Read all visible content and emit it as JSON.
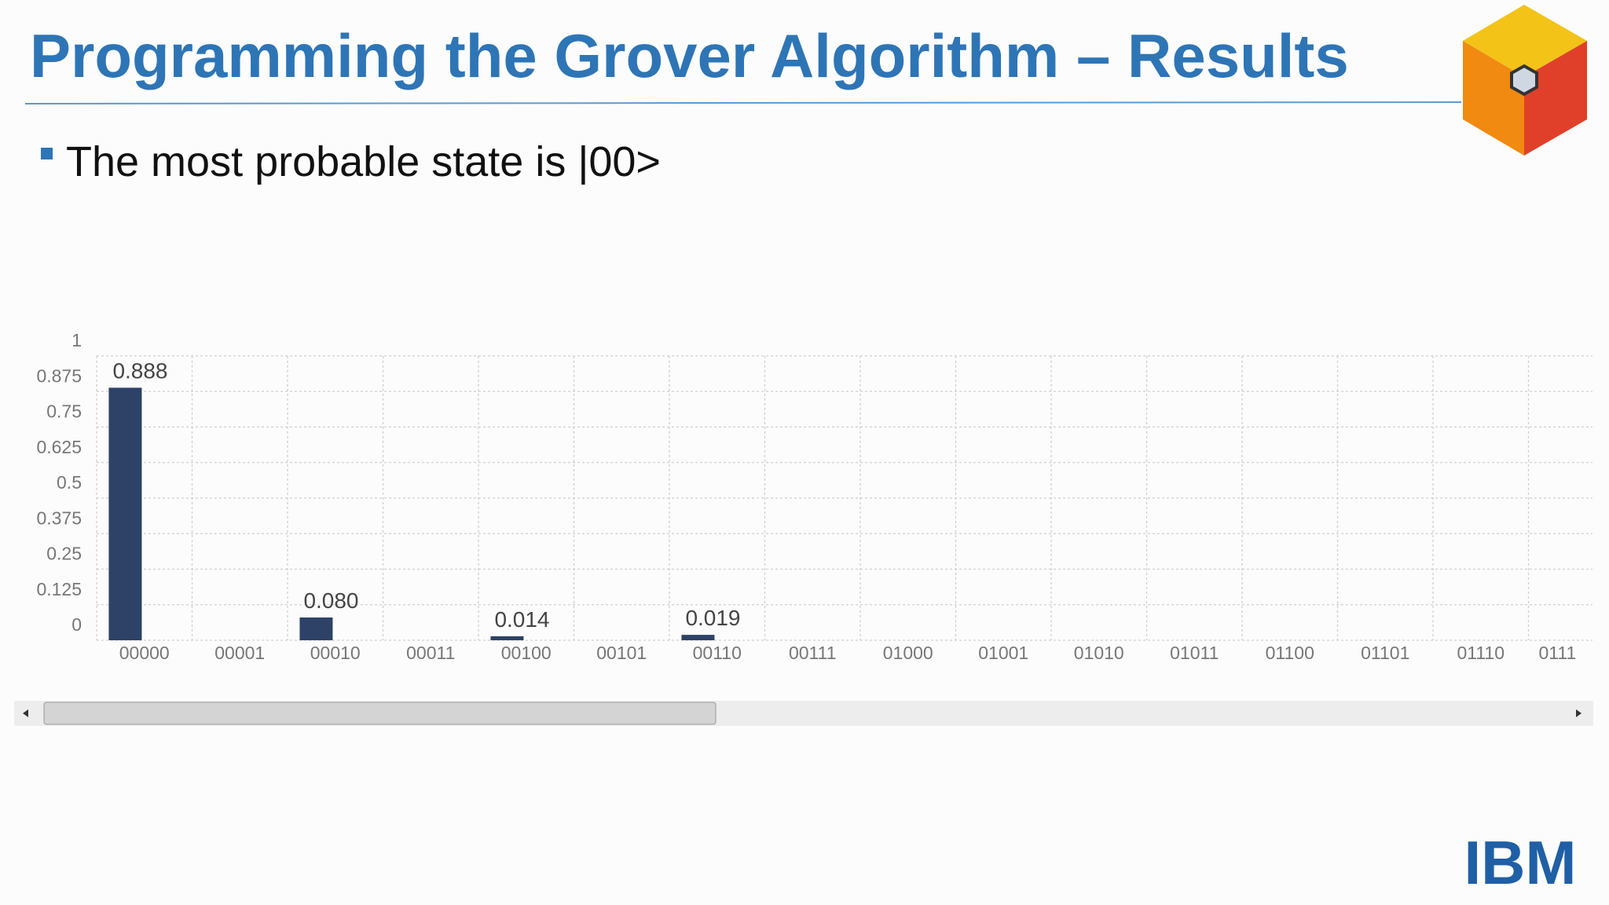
{
  "header": {
    "title": "Programming the Grover Algorithm – Results"
  },
  "bullets": [
    "The most probable state is |00>"
  ],
  "chart_data": {
    "type": "bar",
    "categories": [
      "00000",
      "00001",
      "00010",
      "00011",
      "00100",
      "00101",
      "00110",
      "00111",
      "01000",
      "01001",
      "01010",
      "01011",
      "01100",
      "01101",
      "01110",
      "0111"
    ],
    "values": [
      0.888,
      0,
      0.08,
      0,
      0.014,
      0,
      0.019,
      0,
      0,
      0,
      0,
      0,
      0,
      0,
      0,
      0
    ],
    "value_labels": [
      "0.888",
      null,
      "0.080",
      null,
      "0.014",
      null,
      "0.019",
      null,
      null,
      null,
      null,
      null,
      null,
      null,
      null,
      null
    ],
    "color": "#2d4266",
    "ylim": [
      0,
      1
    ],
    "yticks": [
      0,
      0.125,
      0.25,
      0.375,
      0.5,
      0.625,
      0.75,
      0.875,
      1
    ],
    "grid": true
  },
  "logo_text": "IBM"
}
